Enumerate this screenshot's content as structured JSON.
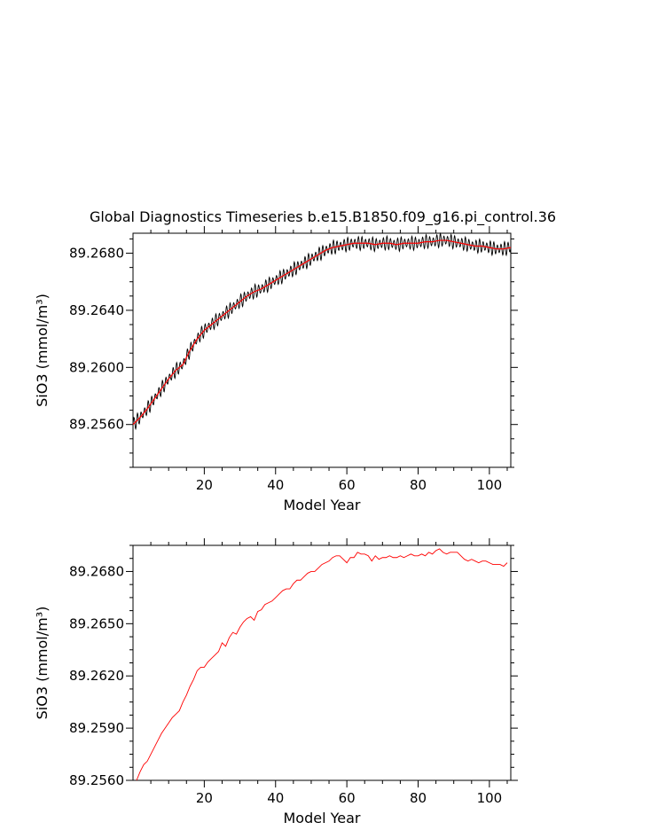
{
  "title": "Global Diagnostics Timeseries b.e15.B1850.f09_g16.pi_control.36",
  "colors": {
    "monthly": "#000000",
    "annual": "#ff0000",
    "axes": "#000000"
  },
  "chart_data": [
    {
      "type": "line",
      "title": "Global Diagnostics Timeseries b.e15.B1850.f09_g16.pi_control.36",
      "xlabel": "Model Year",
      "ylabel": "SiO3 (mmol/m³)",
      "xlim": [
        0,
        106
      ],
      "ylim": [
        89.253,
        89.2694
      ],
      "xticks": [
        "20",
        "40",
        "60",
        "80",
        "100"
      ],
      "yticks": [
        "89.2560",
        "89.2600",
        "89.2640",
        "89.2680"
      ],
      "grid": false,
      "series": [
        {
          "kind": "monthly-oscillating",
          "color": "black",
          "amplitude": 0.0005,
          "x": [
            0,
            2,
            4,
            6,
            8,
            10,
            12,
            14,
            16,
            18,
            20,
            22,
            24,
            26,
            28,
            30,
            32,
            34,
            36,
            38,
            40,
            42,
            44,
            46,
            48,
            50,
            52,
            54,
            56,
            58,
            60,
            62,
            64,
            66,
            68,
            70,
            72,
            74,
            76,
            78,
            80,
            82,
            84,
            86,
            88,
            90,
            92,
            94,
            96,
            98,
            100,
            102,
            104,
            106
          ],
          "y": [
            89.256,
            89.2565,
            89.2571,
            89.2578,
            89.2585,
            89.2592,
            89.2598,
            89.2602,
            89.2612,
            89.262,
            89.2626,
            89.263,
            89.2634,
            89.2638,
            89.2642,
            89.2646,
            89.265,
            89.2653,
            89.2655,
            89.2658,
            89.2661,
            89.2664,
            89.2667,
            89.267,
            89.2673,
            89.2676,
            89.2679,
            89.2682,
            89.2684,
            89.2685,
            89.2686,
            89.2687,
            89.2687,
            89.2687,
            89.2686,
            89.2687,
            89.2687,
            89.2686,
            89.2687,
            89.2687,
            89.2687,
            89.2688,
            89.2688,
            89.2689,
            89.2689,
            89.2688,
            89.2687,
            89.2686,
            89.2685,
            89.2685,
            89.2684,
            89.2683,
            89.2683,
            89.2684
          ]
        },
        {
          "kind": "annual-mean",
          "color": "red",
          "x": [
            0,
            2,
            4,
            6,
            8,
            10,
            12,
            14,
            16,
            18,
            20,
            22,
            24,
            26,
            28,
            30,
            32,
            34,
            36,
            38,
            40,
            42,
            44,
            46,
            48,
            50,
            52,
            54,
            56,
            58,
            60,
            62,
            64,
            66,
            68,
            70,
            72,
            74,
            76,
            78,
            80,
            82,
            84,
            86,
            88,
            90,
            92,
            94,
            96,
            98,
            100,
            102,
            104,
            106
          ],
          "y": [
            89.256,
            89.2565,
            89.2571,
            89.2578,
            89.2585,
            89.2592,
            89.2598,
            89.2602,
            89.2612,
            89.262,
            89.2626,
            89.263,
            89.2634,
            89.2638,
            89.2642,
            89.2646,
            89.265,
            89.2653,
            89.2655,
            89.2658,
            89.2661,
            89.2664,
            89.2667,
            89.267,
            89.2673,
            89.2676,
            89.2679,
            89.2682,
            89.2684,
            89.2685,
            89.2686,
            89.2687,
            89.2687,
            89.2687,
            89.2686,
            89.2687,
            89.2687,
            89.2686,
            89.2687,
            89.2687,
            89.2687,
            89.2688,
            89.2688,
            89.2689,
            89.2689,
            89.2688,
            89.2687,
            89.2686,
            89.2685,
            89.2685,
            89.2684,
            89.2683,
            89.2683,
            89.2684
          ]
        }
      ]
    },
    {
      "type": "line",
      "xlabel": "Model Year",
      "ylabel": "SiO3 (mmol/m³)",
      "xlim": [
        0,
        106
      ],
      "ylim": [
        89.256,
        89.2695
      ],
      "xticks": [
        "20",
        "40",
        "60",
        "80",
        "100"
      ],
      "yticks": [
        "89.2560",
        "89.2590",
        "89.2620",
        "89.2650",
        "89.2680"
      ],
      "grid": false,
      "series": [
        {
          "color": "red",
          "x": [
            1,
            2,
            3,
            4,
            5,
            6,
            7,
            8,
            9,
            10,
            11,
            12,
            13,
            14,
            15,
            16,
            17,
            18,
            19,
            20,
            21,
            22,
            23,
            24,
            25,
            26,
            27,
            28,
            29,
            30,
            31,
            32,
            33,
            34,
            35,
            36,
            37,
            38,
            39,
            40,
            41,
            42,
            43,
            44,
            45,
            46,
            47,
            48,
            49,
            50,
            51,
            52,
            53,
            54,
            55,
            56,
            57,
            58,
            59,
            60,
            61,
            62,
            63,
            64,
            65,
            66,
            67,
            68,
            69,
            70,
            71,
            72,
            73,
            74,
            75,
            76,
            77,
            78,
            79,
            80,
            81,
            82,
            83,
            84,
            85,
            86,
            87,
            88,
            89,
            90,
            91,
            92,
            93,
            94,
            95,
            96,
            97,
            98,
            99,
            100,
            101,
            102,
            103,
            104,
            105
          ],
          "y": [
            89.256,
            89.2565,
            89.2569,
            89.2571,
            89.2575,
            89.2579,
            89.2583,
            89.2587,
            89.259,
            89.2593,
            89.2596,
            89.2598,
            89.26,
            89.2605,
            89.2609,
            89.2614,
            89.2618,
            89.2623,
            89.2625,
            89.2625,
            89.2628,
            89.263,
            89.2632,
            89.2634,
            89.2639,
            89.2637,
            89.2642,
            89.2645,
            89.2644,
            89.2648,
            89.2651,
            89.2653,
            89.2654,
            89.2652,
            89.2657,
            89.2658,
            89.2661,
            89.2662,
            89.2663,
            89.2665,
            89.2667,
            89.2669,
            89.267,
            89.267,
            89.2673,
            89.2675,
            89.2675,
            89.2677,
            89.2679,
            89.268,
            89.268,
            89.2682,
            89.2684,
            89.2685,
            89.2686,
            89.2688,
            89.2689,
            89.2689,
            89.2687,
            89.2685,
            89.2688,
            89.2688,
            89.2691,
            89.269,
            89.269,
            89.2689,
            89.2686,
            89.2689,
            89.2687,
            89.2688,
            89.2688,
            89.2689,
            89.2688,
            89.2688,
            89.2689,
            89.2688,
            89.2689,
            89.269,
            89.2689,
            89.2689,
            89.269,
            89.2689,
            89.2691,
            89.269,
            89.2692,
            89.2693,
            89.2691,
            89.269,
            89.2691,
            89.2691,
            89.2691,
            89.2689,
            89.2687,
            89.2686,
            89.2687,
            89.2686,
            89.2685,
            89.2686,
            89.2686,
            89.2685,
            89.2684,
            89.2684,
            89.2684,
            89.2683,
            89.2685
          ]
        }
      ]
    }
  ]
}
